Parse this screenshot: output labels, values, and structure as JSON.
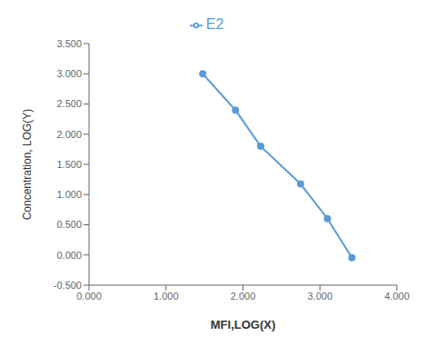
{
  "chart_data": {
    "type": "line",
    "xlabel": "MFI,LOG(X)",
    "ylabel": "Concentration, LOG(Y)",
    "x": [
      1.477,
      1.903,
      2.23,
      2.748,
      3.097,
      3.415
    ],
    "series": [
      {
        "name": "E2",
        "color": "#5b9bd5",
        "marker": "circle",
        "values": [
          3.0,
          2.397,
          1.799,
          1.176,
          0.602,
          -0.046
        ]
      }
    ],
    "xlim": [
      0.0,
      4.0
    ],
    "ylim": [
      -0.5,
      3.5
    ],
    "xticks": [
      {
        "value": 0.0,
        "label": "0.000"
      },
      {
        "value": 1.0,
        "label": "1.000"
      },
      {
        "value": 2.0,
        "label": "2.000"
      },
      {
        "value": 3.0,
        "label": "3.000"
      },
      {
        "value": 4.0,
        "label": "4.000"
      }
    ],
    "yticks": [
      {
        "value": -0.5,
        "label": "-0.500"
      },
      {
        "value": 0.0,
        "label": "0.000"
      },
      {
        "value": 0.5,
        "label": "0.500"
      },
      {
        "value": 1.0,
        "label": "1.000"
      },
      {
        "value": 1.5,
        "label": "1.500"
      },
      {
        "value": 2.0,
        "label": "2.000"
      },
      {
        "value": 2.5,
        "label": "2.500"
      },
      {
        "value": 3.0,
        "label": "3.000"
      },
      {
        "value": 3.5,
        "label": "3.500"
      }
    ],
    "grid": false,
    "legend": "top"
  }
}
